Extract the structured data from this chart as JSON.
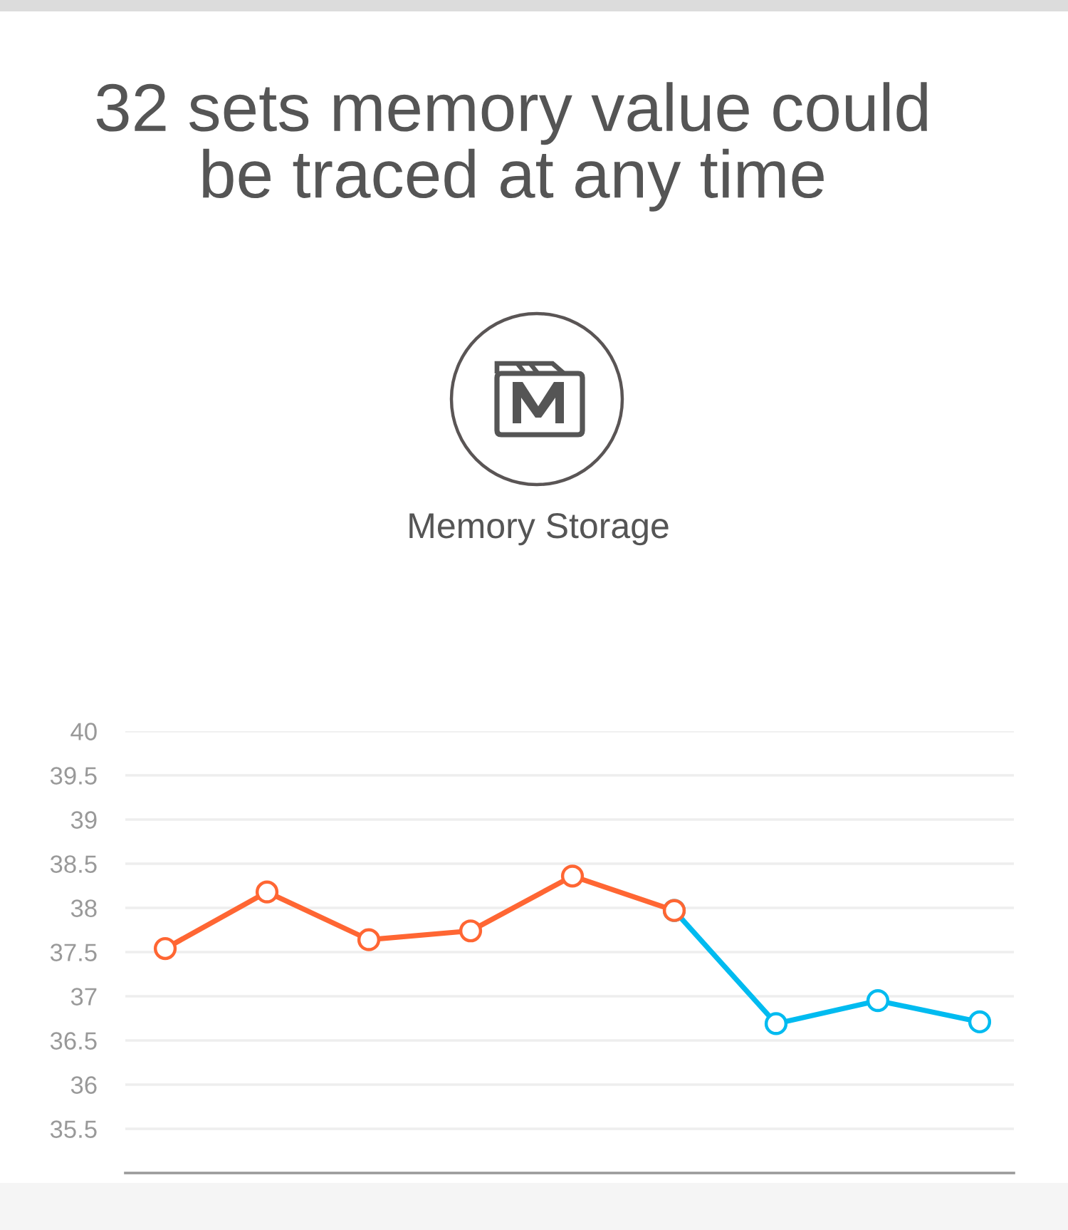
{
  "chart_data": {
    "type": "line",
    "title": "32 sets memory value could\nbe traced at any time",
    "subtitle": "Memory Storage",
    "categories": [
      null,
      null,
      null,
      null,
      null,
      null,
      null,
      null,
      null
    ],
    "series": [
      {
        "color": "#ff6633",
        "values": [
          37.54,
          38.18,
          37.64,
          37.74,
          38.36,
          37.97,
          null,
          null,
          null
        ]
      },
      {
        "color": "#00bbf0",
        "values": [
          null,
          null,
          null,
          null,
          null,
          37.97,
          36.69,
          36.95,
          36.71
        ]
      }
    ],
    "ylim": [
      35,
      40
    ],
    "yticks": [
      35.5,
      36,
      36.5,
      37,
      37.5,
      38,
      38.5,
      39,
      39.5,
      40
    ],
    "grid": "y",
    "marker": "circle",
    "line_style": "solid",
    "tick_labels": "y"
  }
}
